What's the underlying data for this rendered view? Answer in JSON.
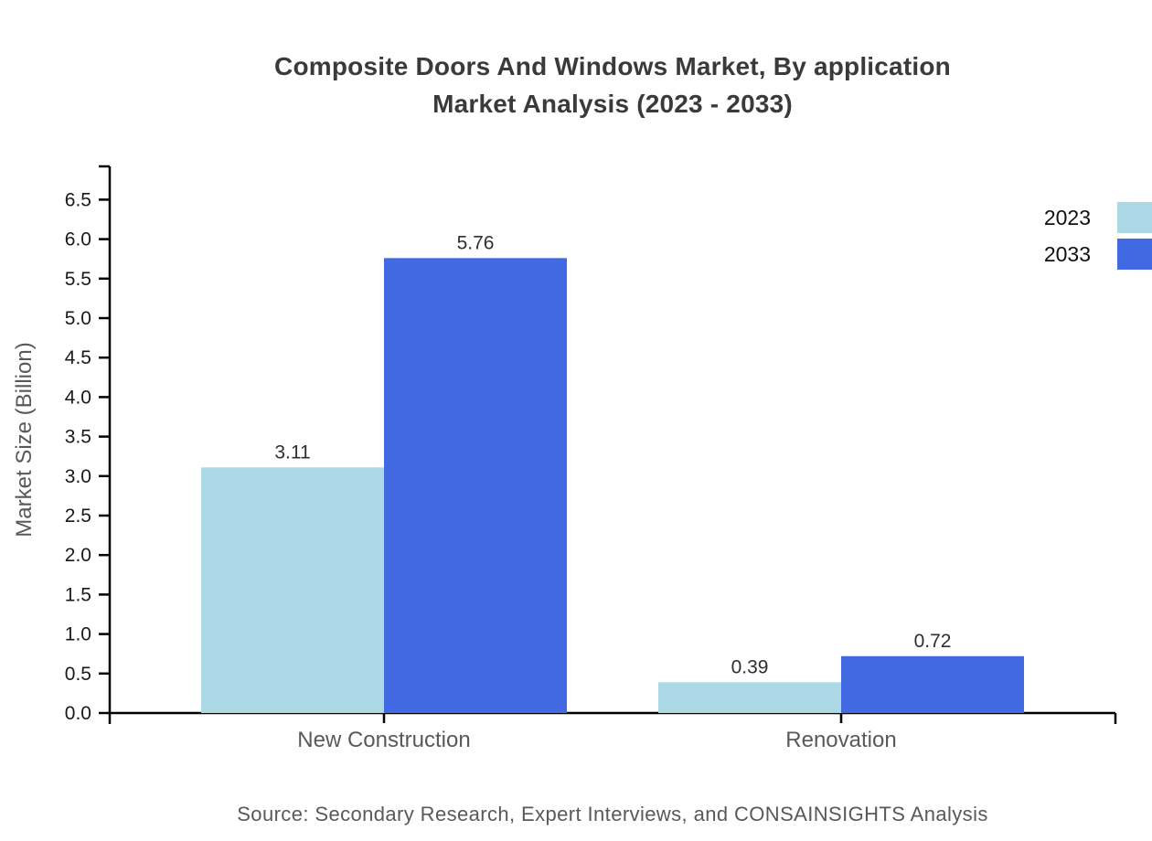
{
  "title": {
    "line1": "Composite Doors And Windows Market, By application",
    "line2": "Market Analysis (2023 - 2033)"
  },
  "source": "Source: Secondary Research, Expert Interviews, and CONSAINSIGHTS Analysis",
  "chart_data": {
    "type": "bar",
    "title": "Composite Doors And Windows Market, By application Market Analysis (2023 - 2033)",
    "categories": [
      "New Construction",
      "Renovation"
    ],
    "series": [
      {
        "name": "2023",
        "color": "#ADD8E6",
        "values": [
          3.11,
          0.39
        ]
      },
      {
        "name": "2033",
        "color": "#4169E1",
        "values": [
          5.76,
          0.72
        ]
      }
    ],
    "xlabel": "",
    "ylabel": "Market Size (Billion)",
    "ylim": [
      0,
      6.5
    ],
    "ytick_step": 0.5,
    "ytick_format_decimals": 1,
    "value_label_decimals": 2,
    "grid": false,
    "legend_position": "top-right",
    "axis_color": "#000000",
    "text_colors": {
      "title": "#3a3a3a",
      "ticks": "#1a1a1a",
      "category": "#595959",
      "value_labels": "#2e2e2e",
      "ylabel": "#595959",
      "source": "#595959"
    }
  }
}
